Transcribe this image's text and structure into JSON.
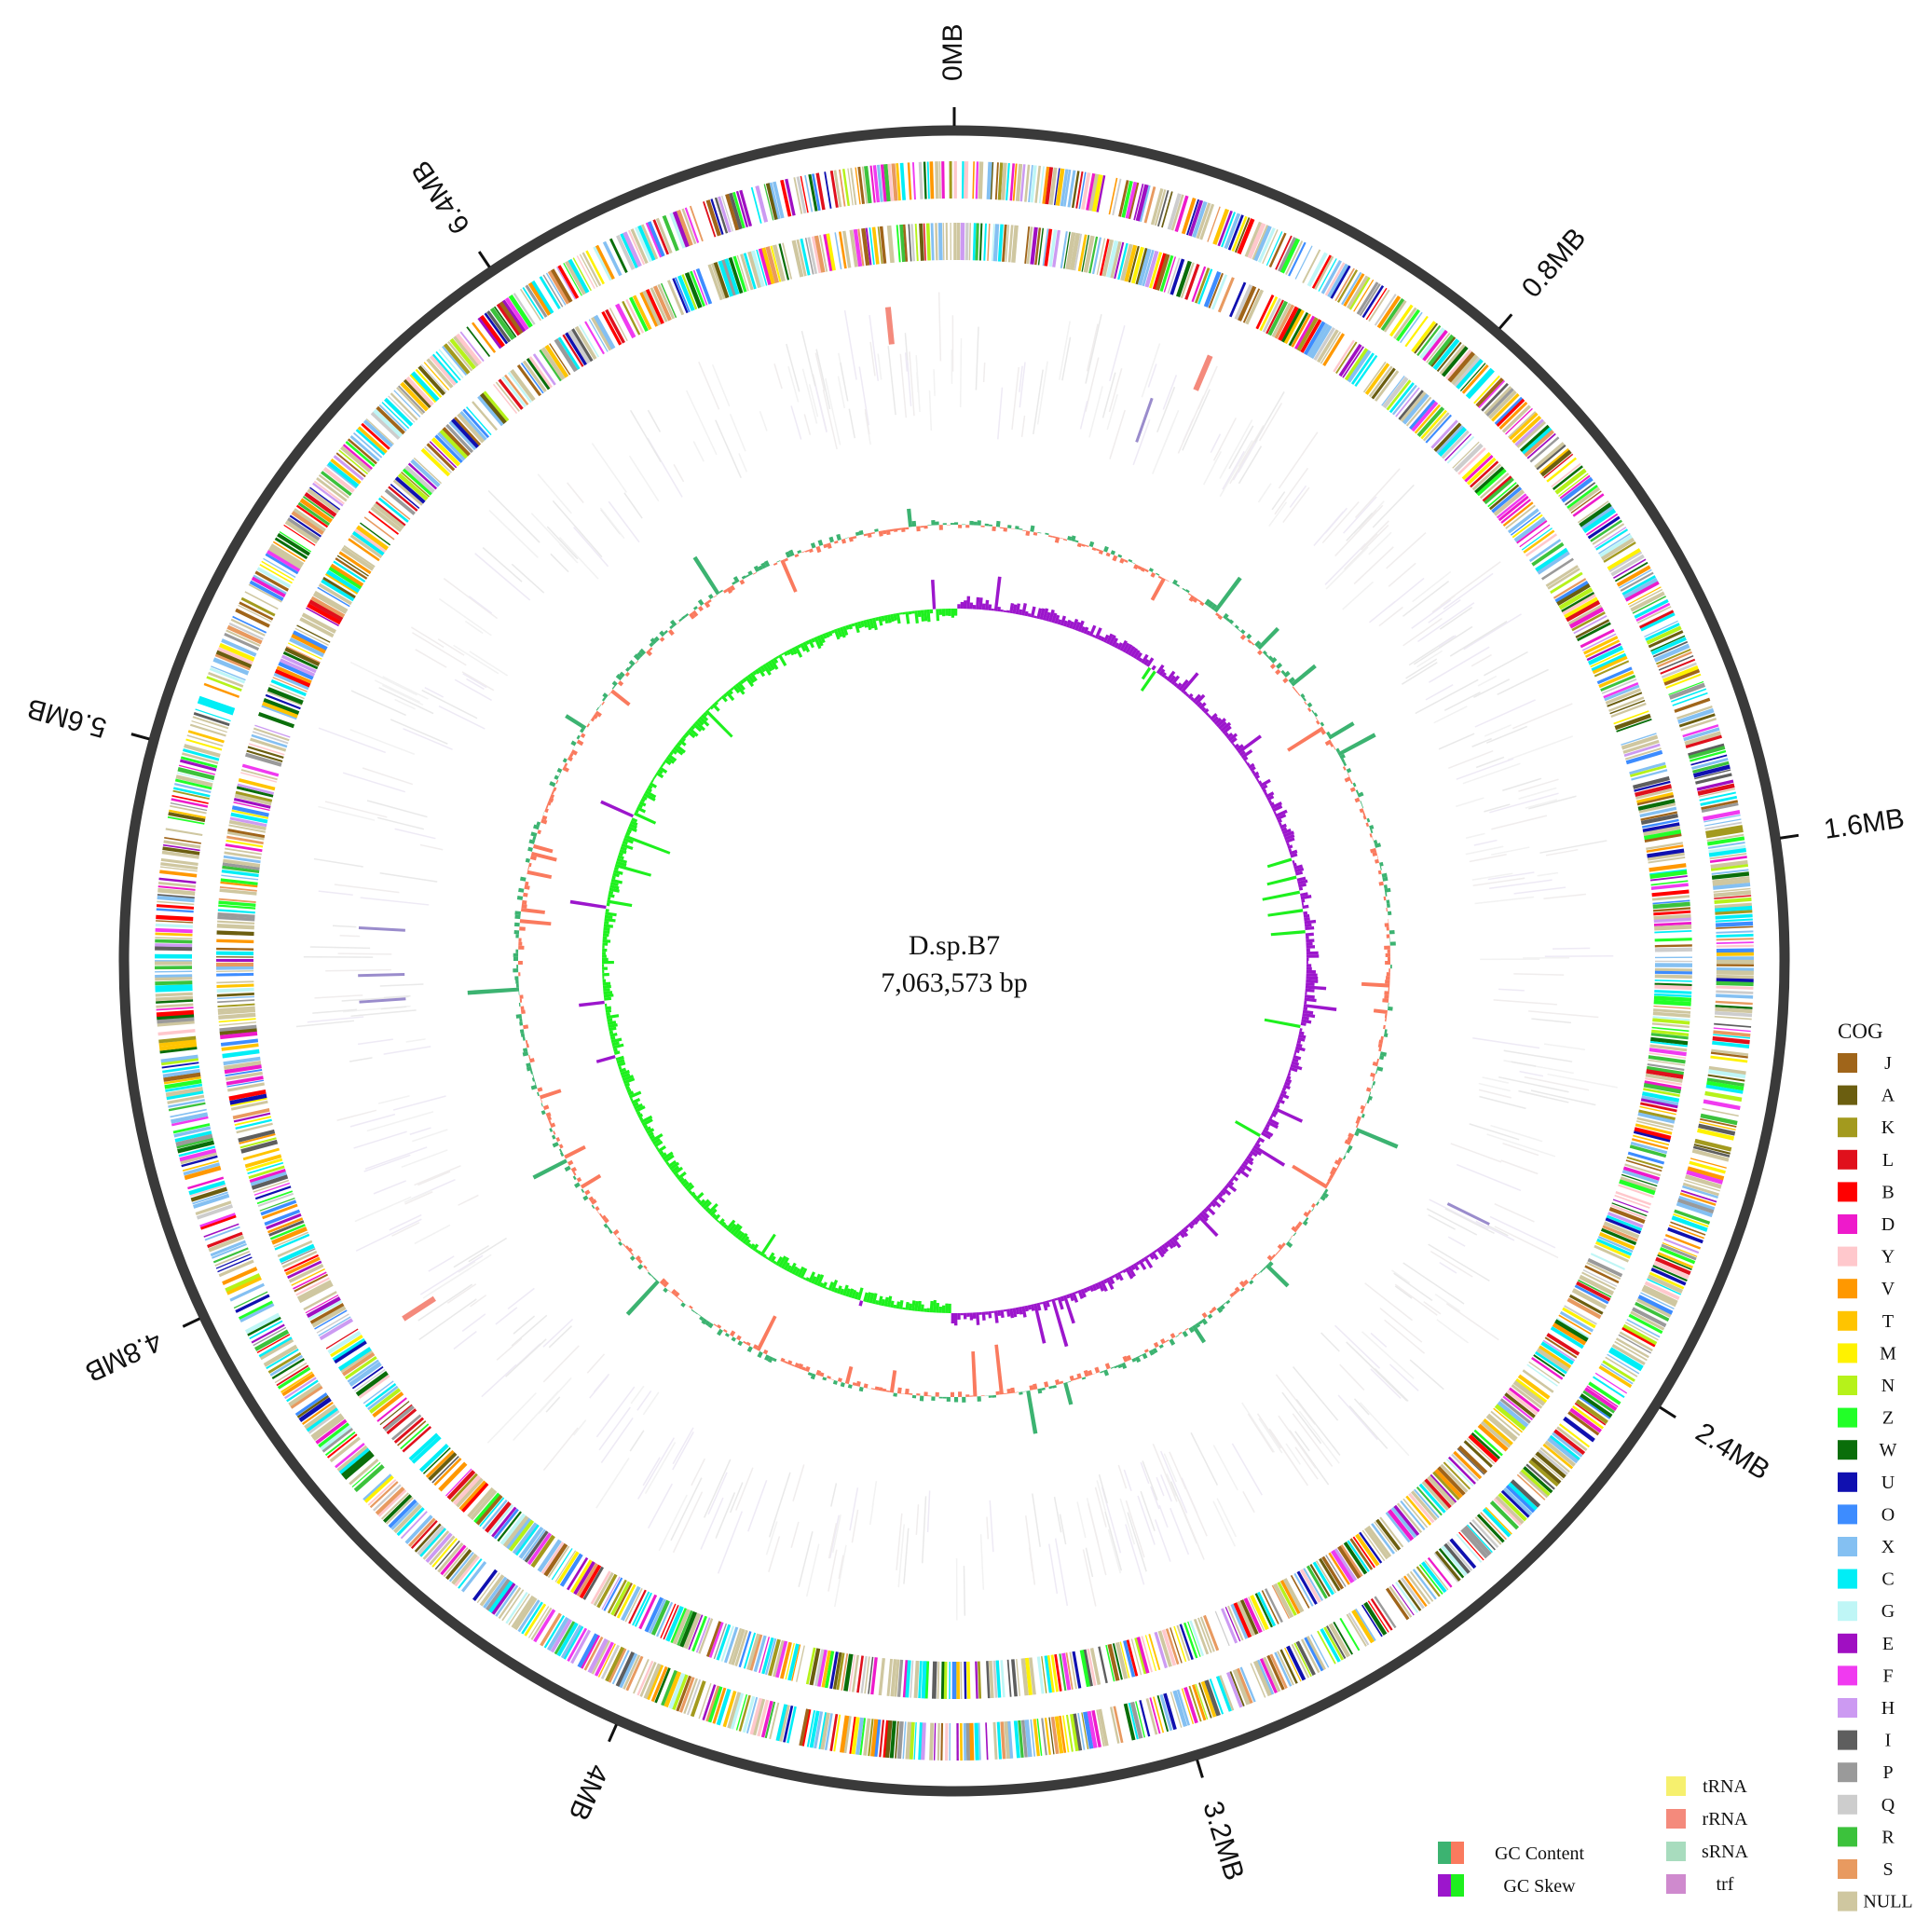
{
  "genome": {
    "name": "D.sp.B7",
    "length_label": "7,063,573 bp",
    "length_bp": 7063573
  },
  "scale": {
    "ticks": [
      {
        "label": "0MB",
        "mb": 0
      },
      {
        "label": "0.8MB",
        "mb": 0.8
      },
      {
        "label": "1.6MB",
        "mb": 1.6
      },
      {
        "label": "2.4MB",
        "mb": 2.4
      },
      {
        "label": "3.2MB",
        "mb": 3.2
      },
      {
        "label": "4MB",
        "mb": 4.0
      },
      {
        "label": "4.8MB",
        "mb": 4.8
      },
      {
        "label": "5.6MB",
        "mb": 5.6
      },
      {
        "label": "6.4MB",
        "mb": 6.4
      }
    ]
  },
  "cog_legend": {
    "title": "COG",
    "items": [
      {
        "code": "J",
        "color": "#A0651A"
      },
      {
        "code": "A",
        "color": "#6B5E10"
      },
      {
        "code": "K",
        "color": "#A39A1E"
      },
      {
        "code": "L",
        "color": "#E0101C"
      },
      {
        "code": "B",
        "color": "#FF0000"
      },
      {
        "code": "D",
        "color": "#EE1ACB"
      },
      {
        "code": "Y",
        "color": "#FFC8CC"
      },
      {
        "code": "V",
        "color": "#FF9800"
      },
      {
        "code": "T",
        "color": "#FFC400"
      },
      {
        "code": "M",
        "color": "#FFF200"
      },
      {
        "code": "N",
        "color": "#B6F21A"
      },
      {
        "code": "Z",
        "color": "#22FF28"
      },
      {
        "code": "W",
        "color": "#0A6E0A"
      },
      {
        "code": "U",
        "color": "#1010B0"
      },
      {
        "code": "O",
        "color": "#3D8CFF"
      },
      {
        "code": "X",
        "color": "#84C0F2"
      },
      {
        "code": "C",
        "color": "#00EEF6"
      },
      {
        "code": "G",
        "color": "#BFF6F6"
      },
      {
        "code": "E",
        "color": "#A00FC2"
      },
      {
        "code": "F",
        "color": "#F03AF0"
      },
      {
        "code": "H",
        "color": "#CC9AF2"
      },
      {
        "code": "I",
        "color": "#5E5E5E"
      },
      {
        "code": "P",
        "color": "#9A9A9A"
      },
      {
        "code": "Q",
        "color": "#CDCDCD"
      },
      {
        "code": "R",
        "color": "#3CC23C"
      },
      {
        "code": "S",
        "color": "#E89A60"
      },
      {
        "code": "NULL",
        "color": "#CFC7A0"
      }
    ]
  },
  "rna_legend": [
    {
      "label": "tRNA",
      "color": "#F6F06E"
    },
    {
      "label": "rRNA",
      "color": "#F48A7C"
    },
    {
      "label": "sRNA",
      "color": "#A8DCBE"
    },
    {
      "label": "trf",
      "color": "#CF8ACE"
    }
  ],
  "gc_legend": [
    {
      "label": "GC Content",
      "colors": [
        "#3CB371",
        "#FA7A5E"
      ]
    },
    {
      "label": "GC Skew",
      "colors": [
        "#9C16CC",
        "#1EF01E"
      ]
    }
  ],
  "rna_features": [
    {
      "type": "rRNA",
      "mb": 6.95
    },
    {
      "type": "rRNA",
      "mb": 0.45
    },
    {
      "type": "rRNA",
      "mb": 4.65
    },
    {
      "type": "trf",
      "mb": 0.38
    },
    {
      "type": "trf",
      "mb": 5.22
    },
    {
      "type": "trf",
      "mb": 5.27
    },
    {
      "type": "trf",
      "mb": 5.36
    },
    {
      "type": "trf",
      "mb": 2.28
    }
  ]
}
